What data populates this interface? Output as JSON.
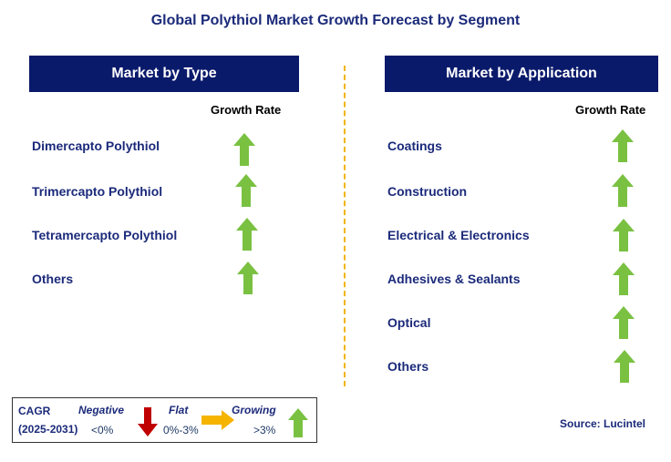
{
  "title": "Global Polythiol Market Growth Forecast by Segment",
  "left": {
    "header": "Market by Type",
    "growth_label": "Growth Rate",
    "items": [
      "Dimercapto Polythiol",
      "Trimercapto Polythiol",
      "Tetramercapto Polythiol",
      "Others"
    ]
  },
  "right": {
    "header": "Market by Application",
    "growth_label": "Growth Rate",
    "items": [
      "Coatings",
      "Construction",
      "Electrical & Electronics",
      "Adhesives & Sealants",
      "Optical",
      "Others"
    ]
  },
  "legend": {
    "cagr": "CAGR",
    "period": "(2025-2031)",
    "negative": "Negative",
    "negative_range": "<0%",
    "flat": "Flat",
    "flat_range": "0%-3%",
    "growing": "Growing",
    "growing_range": ">3%"
  },
  "source": "Source: Lucintel",
  "colors": {
    "header_bg": "#0a1a6b",
    "growing": "#7ac142",
    "negative": "#c00000",
    "flat": "#f5b400",
    "divider": "#f0b400"
  }
}
